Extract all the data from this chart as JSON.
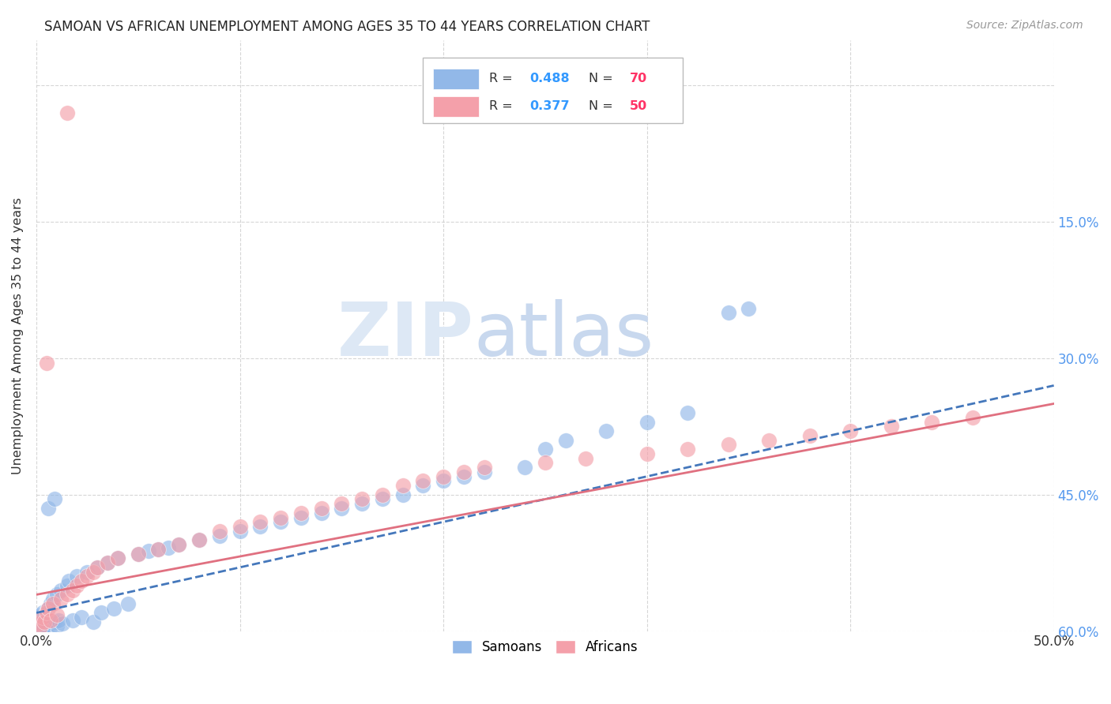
{
  "title": "SAMOAN VS AFRICAN UNEMPLOYMENT AMONG AGES 35 TO 44 YEARS CORRELATION CHART",
  "source": "Source: ZipAtlas.com",
  "ylabel": "Unemployment Among Ages 35 to 44 years",
  "xlim": [
    0.0,
    0.5
  ],
  "ylim": [
    0.0,
    0.65
  ],
  "xticks": [
    0.0,
    0.1,
    0.2,
    0.3,
    0.4,
    0.5
  ],
  "yticks": [
    0.0,
    0.15,
    0.3,
    0.45,
    0.6
  ],
  "xticklabels": [
    "0.0%",
    "",
    "",
    "",
    "",
    "50.0%"
  ],
  "right_yticklabels": [
    "60.0%",
    "45.0%",
    "30.0%",
    "15.0%",
    ""
  ],
  "samoan_color": "#92B8E8",
  "african_color": "#F4A0AA",
  "samoan_line_color": "#4477BB",
  "african_line_color": "#E07080",
  "samoan_R": "0.488",
  "samoan_N": "70",
  "african_R": "0.377",
  "african_N": "50",
  "legend_R_color": "#3399FF",
  "legend_N_color": "#FF3366",
  "background_color": "#FFFFFF",
  "grid_color": "#CCCCCC",
  "watermark_color": "#DDE8F5",
  "samoan_x": [
    0.001,
    0.001,
    0.001,
    0.002,
    0.002,
    0.002,
    0.003,
    0.003,
    0.003,
    0.004,
    0.004,
    0.005,
    0.005,
    0.005,
    0.006,
    0.006,
    0.007,
    0.007,
    0.008,
    0.008,
    0.009,
    0.01,
    0.01,
    0.011,
    0.012,
    0.013,
    0.015,
    0.016,
    0.018,
    0.02,
    0.022,
    0.025,
    0.028,
    0.03,
    0.032,
    0.035,
    0.038,
    0.04,
    0.045,
    0.05,
    0.055,
    0.06,
    0.065,
    0.07,
    0.08,
    0.09,
    0.1,
    0.11,
    0.12,
    0.13,
    0.14,
    0.15,
    0.16,
    0.17,
    0.18,
    0.19,
    0.2,
    0.21,
    0.22,
    0.24,
    0.25,
    0.26,
    0.28,
    0.3,
    0.32,
    0.34,
    0.35,
    0.003,
    0.006,
    0.009
  ],
  "samoan_y": [
    0.005,
    0.008,
    0.015,
    0.003,
    0.01,
    0.018,
    0.006,
    0.012,
    0.02,
    0.004,
    0.016,
    0.002,
    0.009,
    0.022,
    0.007,
    0.025,
    0.005,
    0.03,
    0.008,
    0.035,
    0.01,
    0.006,
    0.04,
    0.012,
    0.045,
    0.008,
    0.05,
    0.055,
    0.012,
    0.06,
    0.015,
    0.065,
    0.01,
    0.07,
    0.02,
    0.075,
    0.025,
    0.08,
    0.03,
    0.085,
    0.088,
    0.09,
    0.092,
    0.095,
    0.1,
    0.105,
    0.11,
    0.115,
    0.12,
    0.125,
    0.13,
    0.135,
    0.14,
    0.145,
    0.15,
    0.16,
    0.165,
    0.17,
    0.175,
    0.18,
    0.2,
    0.21,
    0.22,
    0.23,
    0.24,
    0.35,
    0.355,
    0.002,
    0.135,
    0.145
  ],
  "african_x": [
    0.001,
    0.002,
    0.003,
    0.004,
    0.005,
    0.006,
    0.007,
    0.008,
    0.01,
    0.012,
    0.015,
    0.018,
    0.02,
    0.022,
    0.025,
    0.028,
    0.03,
    0.035,
    0.04,
    0.05,
    0.06,
    0.07,
    0.08,
    0.09,
    0.1,
    0.11,
    0.12,
    0.13,
    0.14,
    0.15,
    0.16,
    0.17,
    0.18,
    0.19,
    0.2,
    0.21,
    0.22,
    0.25,
    0.27,
    0.3,
    0.32,
    0.34,
    0.36,
    0.38,
    0.4,
    0.42,
    0.44,
    0.46,
    0.005,
    0.015
  ],
  "african_y": [
    0.008,
    0.005,
    0.015,
    0.01,
    0.02,
    0.025,
    0.012,
    0.03,
    0.018,
    0.035,
    0.04,
    0.045,
    0.05,
    0.055,
    0.06,
    0.065,
    0.07,
    0.075,
    0.08,
    0.085,
    0.09,
    0.095,
    0.1,
    0.11,
    0.115,
    0.12,
    0.125,
    0.13,
    0.135,
    0.14,
    0.145,
    0.15,
    0.16,
    0.165,
    0.17,
    0.175,
    0.18,
    0.185,
    0.19,
    0.195,
    0.2,
    0.205,
    0.21,
    0.215,
    0.22,
    0.225,
    0.23,
    0.235,
    0.295,
    0.57
  ],
  "samoan_line_x": [
    0.0,
    0.5
  ],
  "samoan_line_y": [
    0.02,
    0.27
  ],
  "african_line_x": [
    0.0,
    0.5
  ],
  "african_line_y": [
    0.04,
    0.25
  ]
}
